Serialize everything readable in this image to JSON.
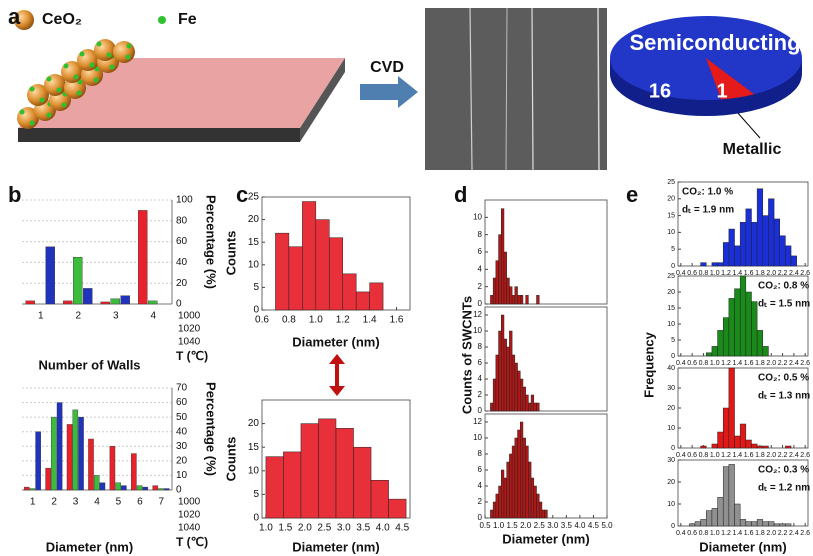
{
  "panel_labels": [
    "a",
    "b",
    "c",
    "d",
    "e"
  ],
  "schematic": {
    "particle": "CeO₂",
    "catalyst": "Fe",
    "process": "CVD"
  },
  "chart_data": [
    {
      "type": "pie",
      "categories": [
        "Semiconducting",
        "Metallic"
      ],
      "values": [
        16,
        1
      ],
      "colors": [
        "#2236c8",
        "#e51a1a"
      ]
    },
    {
      "type": "bar",
      "x_label": "Number of Walls",
      "y_label": "Percentage (%)",
      "z_label": "T (℃)",
      "categories": [
        "1",
        "2",
        "3",
        "4"
      ],
      "ylim": [
        0,
        100
      ],
      "yticks": [
        0,
        20,
        40,
        60,
        80,
        100
      ],
      "grid": true,
      "series": [
        {
          "name": "1000",
          "color": "#e8222a",
          "values": [
            3,
            3,
            2,
            90
          ]
        },
        {
          "name": "1020",
          "color": "#3dbb3d",
          "values": [
            0,
            45,
            5,
            3
          ]
        },
        {
          "name": "1040",
          "color": "#2233bb",
          "values": [
            55,
            15,
            8,
            0
          ]
        }
      ]
    },
    {
      "type": "bar",
      "x_label": "Diameter (nm)",
      "y_label": "Percentage (%)",
      "z_label": "T (℃)",
      "categories": [
        "1",
        "2",
        "3",
        "4",
        "5",
        "6",
        "7"
      ],
      "ylim": [
        0,
        70
      ],
      "yticks": [
        0,
        10,
        20,
        30,
        40,
        50,
        60,
        70
      ],
      "grid": true,
      "series": [
        {
          "name": "1000",
          "color": "#e8222a",
          "values": [
            2,
            15,
            45,
            35,
            30,
            25,
            3
          ]
        },
        {
          "name": "1020",
          "color": "#3dbb3d",
          "values": [
            1,
            50,
            55,
            10,
            5,
            3,
            1
          ]
        },
        {
          "name": "1040",
          "color": "#2233bb",
          "values": [
            40,
            60,
            50,
            5,
            3,
            2,
            1
          ]
        }
      ]
    },
    {
      "type": "histogram",
      "x_label": "Diameter (nm)",
      "y_label": "Counts",
      "color": "#e8303a",
      "bins": [
        0.7,
        0.8,
        0.9,
        1.0,
        1.1,
        1.2,
        1.3,
        1.4,
        1.5
      ],
      "values": [
        17,
        14,
        24,
        20,
        16,
        8,
        4,
        6
      ],
      "xlim": [
        0.6,
        1.7
      ],
      "xticks": [
        0.6,
        0.8,
        {
          "value": 1,
          "label": "1.0"
        },
        1.2,
        1.4,
        1.6
      ],
      "ylim": [
        0,
        25
      ],
      "yticks": [
        0,
        5,
        10,
        15,
        20,
        25
      ]
    },
    {
      "type": "histogram",
      "x_label": "Diameter (nm)",
      "y_label": "Counts",
      "color": "#e8303a",
      "bins": [
        1.0,
        1.45,
        1.9,
        2.35,
        2.8,
        3.25,
        3.7,
        4.15,
        4.6
      ],
      "values": [
        13,
        14,
        20,
        21,
        19,
        15,
        8,
        4
      ],
      "xlim": [
        0.9,
        4.7
      ],
      "xticks": [
        {
          "value": 1,
          "label": "1.0"
        },
        1.5,
        {
          "value": 2,
          "label": "2.0"
        },
        2.5,
        {
          "value": 3,
          "label": "3.0"
        },
        3.5,
        {
          "value": 4,
          "label": "4.0"
        },
        4.5
      ],
      "ylim": [
        0,
        25
      ],
      "yticks": [
        0,
        5,
        10,
        15,
        20
      ]
    },
    {
      "type": "histogram",
      "color": "#b01818",
      "bins": [
        0.6,
        0.7,
        0.8,
        0.9,
        1.0,
        1.1,
        1.2,
        1.3,
        1.4,
        1.5,
        1.6,
        1.7,
        1.8,
        1.9,
        2.0,
        2.1,
        2.2,
        2.3,
        2.4,
        2.5,
        2.6,
        2.7,
        2.8,
        2.9,
        3.0
      ],
      "values": [
        0,
        1,
        3,
        5,
        8,
        11,
        6,
        3,
        2,
        1,
        2,
        1,
        1,
        0,
        1,
        0,
        0,
        0,
        1,
        0,
        0,
        0,
        0,
        0
      ],
      "xlim": [
        0.5,
        5.0
      ],
      "ylim": [
        0,
        12
      ],
      "yticks": [
        0,
        2,
        4,
        6,
        8,
        10
      ]
    },
    {
      "type": "histogram",
      "y_label": "Counts of SWCNTs",
      "color": "#b01818",
      "bins": [
        0.6,
        0.7,
        0.8,
        0.9,
        1.0,
        1.1,
        1.2,
        1.3,
        1.4,
        1.5,
        1.6,
        1.7,
        1.8,
        1.9,
        2.0,
        2.1,
        2.2,
        2.3,
        2.4,
        2.5,
        2.6,
        2.7,
        2.8,
        2.9,
        3.0
      ],
      "values": [
        0,
        1,
        4,
        7,
        10,
        12,
        9,
        8,
        10,
        7,
        6,
        5,
        4,
        3,
        2,
        1,
        2,
        1,
        1,
        0,
        0,
        0,
        0,
        0
      ],
      "xlim": [
        0.5,
        5.0
      ],
      "ylim": [
        0,
        13
      ],
      "yticks": [
        0,
        2,
        4,
        6,
        8,
        10,
        12
      ]
    },
    {
      "type": "histogram",
      "x_label": "Diameter (nm)",
      "color": "#b01818",
      "bins": [
        0.6,
        0.7,
        0.8,
        0.9,
        1.0,
        1.1,
        1.2,
        1.3,
        1.4,
        1.5,
        1.6,
        1.7,
        1.8,
        1.9,
        2.0,
        2.1,
        2.2,
        2.3,
        2.4,
        2.5,
        2.6,
        2.7,
        2.8,
        2.9,
        3.0
      ],
      "values": [
        0,
        1,
        2,
        3,
        4,
        6,
        5,
        7,
        8,
        9,
        10,
        11,
        12,
        10,
        9,
        7,
        5,
        4,
        3,
        2,
        1,
        1,
        0,
        0
      ],
      "xlim": [
        0.5,
        5.0
      ],
      "xticks": [
        0.5,
        {
          "value": 1,
          "label": "1.0"
        },
        1.5,
        {
          "value": 2,
          "label": "2.0"
        },
        2.5,
        {
          "value": 3,
          "label": "3.0"
        },
        3.5,
        {
          "value": 4,
          "label": "4.0"
        },
        4.5,
        {
          "value": 5,
          "label": "5.0"
        }
      ],
      "ylim": [
        0,
        13
      ],
      "yticks": [
        0,
        2,
        4,
        6,
        8,
        10,
        12
      ]
    },
    {
      "type": "histogram",
      "color": "#1a2fd8",
      "annotations": [
        "CO₂: 1.0 %",
        "dₜ = 1.9 nm"
      ],
      "bins": [
        0.45,
        0.55,
        0.65,
        0.75,
        0.85,
        0.95,
        1.05,
        1.15,
        1.25,
        1.35,
        1.45,
        1.55,
        1.65,
        1.75,
        1.85,
        1.95,
        2.05,
        2.15,
        2.25,
        2.35,
        2.45,
        2.55
      ],
      "values": [
        0,
        0,
        0,
        1,
        0,
        1,
        1,
        7,
        11,
        6,
        13,
        17,
        13,
        23,
        15,
        20,
        14,
        9,
        6,
        3,
        0
      ],
      "xlim": [
        0.35,
        2.65
      ],
      "xticks": [
        0.4,
        0.6,
        0.8,
        {
          "value": 1,
          "label": "1.0"
        },
        1.2,
        1.4,
        1.6,
        1.8,
        {
          "value": 2,
          "label": "2.0"
        },
        2.2,
        2.4,
        2.6
      ],
      "ylim": [
        0,
        25
      ],
      "yticks": [
        0,
        5,
        10,
        15,
        20,
        25
      ]
    },
    {
      "type": "histogram",
      "color": "#1a8a1a",
      "y_label": "Frequency",
      "annotations": [
        "CO₂: 0.8 %",
        "dₜ = 1.5 nm"
      ],
      "bins": [
        0.45,
        0.55,
        0.65,
        0.75,
        0.85,
        0.95,
        1.05,
        1.15,
        1.25,
        1.35,
        1.45,
        1.55,
        1.65,
        1.75,
        1.85,
        1.95,
        2.05,
        2.15,
        2.25,
        2.35,
        2.45,
        2.55
      ],
      "values": [
        0,
        0,
        0,
        0,
        1,
        3,
        8,
        12,
        18,
        21,
        25,
        20,
        17,
        8,
        3,
        0,
        0,
        0,
        0,
        0,
        0
      ],
      "xlim": [
        0.35,
        2.65
      ],
      "xticks": [
        0.4,
        0.6,
        0.8,
        {
          "value": 1,
          "label": "1.0"
        },
        1.2,
        1.4,
        1.6,
        1.8,
        {
          "value": 2,
          "label": "2.0"
        },
        2.2,
        2.4,
        2.6
      ],
      "ylim": [
        0,
        25
      ],
      "yticks": [
        0,
        5,
        10,
        15,
        20,
        25
      ]
    },
    {
      "type": "histogram",
      "color": "#e01818",
      "annotations": [
        "CO₂: 0.5 %",
        "dₜ = 1.3 nm"
      ],
      "bins": [
        0.45,
        0.55,
        0.65,
        0.75,
        0.85,
        0.95,
        1.05,
        1.15,
        1.25,
        1.35,
        1.45,
        1.55,
        1.65,
        1.75,
        1.85,
        1.95,
        2.05,
        2.15,
        2.25,
        2.35,
        2.45,
        2.55
      ],
      "values": [
        0,
        0,
        0,
        1,
        0,
        2,
        8,
        20,
        40,
        6,
        12,
        4,
        2,
        1,
        1,
        0,
        0,
        0,
        1,
        0,
        0
      ],
      "xlim": [
        0.35,
        2.65
      ],
      "xticks": [
        0.4,
        0.6,
        0.8,
        {
          "value": 1,
          "label": "1.0"
        },
        1.2,
        1.4,
        1.6,
        1.8,
        {
          "value": 2,
          "label": "2.0"
        },
        2.2,
        2.4,
        2.6
      ],
      "ylim": [
        0,
        40
      ],
      "yticks": [
        0,
        10,
        20,
        30,
        40
      ]
    },
    {
      "type": "histogram",
      "color": "#909090",
      "x_label": "Diameter (nm)",
      "annotations": [
        "CO₂: 0.3 %",
        "dₜ = 1.2 nm"
      ],
      "bins": [
        0.45,
        0.55,
        0.65,
        0.75,
        0.85,
        0.95,
        1.05,
        1.15,
        1.25,
        1.35,
        1.45,
        1.55,
        1.65,
        1.75,
        1.85,
        1.95,
        2.05,
        2.15,
        2.25,
        2.35,
        2.45,
        2.55
      ],
      "values": [
        0,
        1,
        2,
        3,
        7,
        8,
        13,
        27,
        28,
        10,
        3,
        2,
        2,
        3,
        2,
        2,
        1,
        1,
        1,
        0,
        0
      ],
      "xlim": [
        0.35,
        2.65
      ],
      "xticks": [
        0.4,
        0.6,
        0.8,
        {
          "value": 1,
          "label": "1.0"
        },
        1.2,
        1.4,
        1.6,
        1.8,
        {
          "value": 2,
          "label": "2.0"
        },
        2.2,
        2.4,
        2.6
      ],
      "ylim": [
        0,
        30
      ],
      "yticks": [
        0,
        10,
        20,
        30
      ]
    }
  ]
}
